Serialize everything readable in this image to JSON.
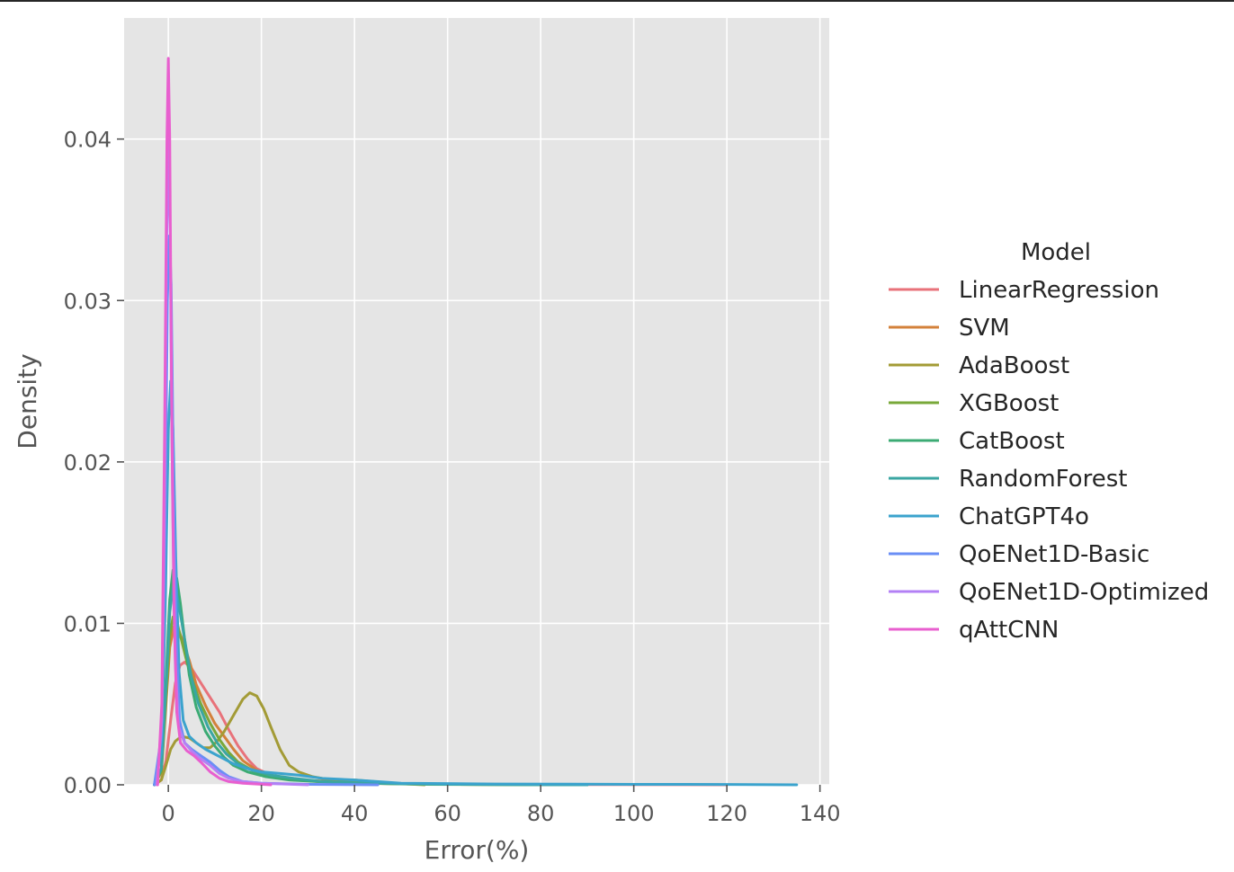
{
  "chart_data": {
    "type": "line",
    "title": "",
    "xlabel": "Error(%)",
    "ylabel": "Density",
    "xlim": [
      -9.5,
      142
    ],
    "ylim": [
      0,
      0.0475
    ],
    "x_ticks": [
      0,
      20,
      40,
      60,
      80,
      100,
      120,
      140
    ],
    "y_ticks": [
      0.0,
      0.01,
      0.02,
      0.03,
      0.04
    ],
    "y_tick_labels": [
      "0.00",
      "0.01",
      "0.02",
      "0.03",
      "0.04"
    ],
    "grid": true,
    "background": "#e5e5e5",
    "legend": {
      "title": "Model",
      "placement": "right-outside"
    },
    "series": [
      {
        "name": "LinearRegression",
        "color": "#e8727a",
        "points": [
          [
            -3,
            0
          ],
          [
            -1.5,
            0.0003
          ],
          [
            -0.5,
            0.0015
          ],
          [
            0.5,
            0.004
          ],
          [
            1.5,
            0.0063
          ],
          [
            2.5,
            0.0074
          ],
          [
            3.5,
            0.0076
          ],
          [
            5,
            0.0072
          ],
          [
            7,
            0.0063
          ],
          [
            9,
            0.0054
          ],
          [
            11,
            0.0045
          ],
          [
            13,
            0.0034
          ],
          [
            15,
            0.0024
          ],
          [
            17,
            0.0016
          ],
          [
            19,
            0.001
          ],
          [
            22,
            0.0006
          ],
          [
            26,
            0.0004
          ],
          [
            32,
            0.0002
          ],
          [
            40,
            0.0001
          ],
          [
            55,
            5e-05
          ],
          [
            80,
            2e-05
          ],
          [
            120,
            0
          ]
        ]
      },
      {
        "name": "SVM",
        "color": "#d3813b",
        "points": [
          [
            -3,
            0
          ],
          [
            -1.5,
            0.0008
          ],
          [
            -0.5,
            0.005
          ],
          [
            0.3,
            0.0085
          ],
          [
            1.2,
            0.0098
          ],
          [
            2,
            0.0097
          ],
          [
            3,
            0.009
          ],
          [
            4.5,
            0.0077
          ],
          [
            6,
            0.0062
          ],
          [
            8,
            0.0049
          ],
          [
            10,
            0.0038
          ],
          [
            12,
            0.003
          ],
          [
            14,
            0.0022
          ],
          [
            16,
            0.0015
          ],
          [
            19,
            0.0009
          ],
          [
            23,
            0.0005
          ],
          [
            28,
            0.0003
          ],
          [
            35,
            0.0002
          ],
          [
            45,
            0.0001
          ],
          [
            60,
            3e-05
          ],
          [
            90,
            0
          ]
        ]
      },
      {
        "name": "AdaBoost",
        "color": "#a39b36",
        "points": [
          [
            -3,
            0
          ],
          [
            -1.5,
            0.0003
          ],
          [
            -0.5,
            0.0012
          ],
          [
            0.5,
            0.0022
          ],
          [
            1.5,
            0.0027
          ],
          [
            2.8,
            0.003
          ],
          [
            4.5,
            0.0029
          ],
          [
            6,
            0.0026
          ],
          [
            7.5,
            0.0023
          ],
          [
            9,
            0.0023
          ],
          [
            10.5,
            0.0027
          ],
          [
            12,
            0.0033
          ],
          [
            14,
            0.0043
          ],
          [
            16,
            0.0053
          ],
          [
            17.5,
            0.0057
          ],
          [
            19,
            0.0055
          ],
          [
            20.5,
            0.0047
          ],
          [
            22,
            0.0036
          ],
          [
            24,
            0.0022
          ],
          [
            26,
            0.0012
          ],
          [
            28,
            0.0008
          ],
          [
            31,
            0.0005
          ],
          [
            35,
            0.0003
          ],
          [
            40,
            0.0003
          ],
          [
            44,
            0.0002
          ],
          [
            48,
            0.0001
          ],
          [
            55,
            0
          ]
        ]
      },
      {
        "name": "XGBoost",
        "color": "#79a83a",
        "points": [
          [
            -3,
            0
          ],
          [
            -1.5,
            0.0008
          ],
          [
            -0.5,
            0.0055
          ],
          [
            0.3,
            0.0092
          ],
          [
            1,
            0.0104
          ],
          [
            1.8,
            0.0101
          ],
          [
            2.8,
            0.009
          ],
          [
            4,
            0.0076
          ],
          [
            5.5,
            0.0062
          ],
          [
            7,
            0.005
          ],
          [
            9,
            0.0038
          ],
          [
            11,
            0.0028
          ],
          [
            13,
            0.002
          ],
          [
            15,
            0.0014
          ],
          [
            18,
            0.0009
          ],
          [
            22,
            0.0005
          ],
          [
            27,
            0.0003
          ],
          [
            33,
            0.0002
          ],
          [
            42,
            0.0001
          ],
          [
            55,
            3e-05
          ],
          [
            80,
            0
          ]
        ]
      },
      {
        "name": "CatBoost",
        "color": "#3cab74",
        "points": [
          [
            -3,
            0
          ],
          [
            -1.5,
            0.001
          ],
          [
            -0.5,
            0.0065
          ],
          [
            0.3,
            0.0115
          ],
          [
            1,
            0.0133
          ],
          [
            1.8,
            0.0128
          ],
          [
            2.6,
            0.0112
          ],
          [
            3.5,
            0.009
          ],
          [
            4.5,
            0.0068
          ],
          [
            6,
            0.0048
          ],
          [
            8,
            0.0033
          ],
          [
            10,
            0.0024
          ],
          [
            12,
            0.0017
          ],
          [
            14,
            0.0012
          ],
          [
            17,
            0.0008
          ],
          [
            21,
            0.0005
          ],
          [
            26,
            0.0003
          ],
          [
            32,
            0.0002
          ],
          [
            42,
            0.0001
          ],
          [
            60,
            3e-05
          ],
          [
            90,
            0
          ]
        ]
      },
      {
        "name": "RandomForest",
        "color": "#3aa6a2",
        "points": [
          [
            -3,
            0
          ],
          [
            -1.5,
            0.001
          ],
          [
            -0.5,
            0.006
          ],
          [
            0.3,
            0.0107
          ],
          [
            1,
            0.0122
          ],
          [
            1.8,
            0.0118
          ],
          [
            2.7,
            0.0104
          ],
          [
            3.8,
            0.0085
          ],
          [
            5,
            0.0066
          ],
          [
            6.5,
            0.005
          ],
          [
            8.5,
            0.0036
          ],
          [
            10.5,
            0.0026
          ],
          [
            12.5,
            0.0019
          ],
          [
            15,
            0.0013
          ],
          [
            18,
            0.0009
          ],
          [
            22,
            0.0006
          ],
          [
            27,
            0.0004
          ],
          [
            33,
            0.0002
          ],
          [
            42,
            0.0001
          ],
          [
            60,
            3e-05
          ],
          [
            90,
            0
          ]
        ]
      },
      {
        "name": "ChatGPT4o",
        "color": "#3ba3cd",
        "points": [
          [
            -3,
            0
          ],
          [
            -1.5,
            0.002
          ],
          [
            -0.6,
            0.012
          ],
          [
            0,
            0.022
          ],
          [
            0.5,
            0.025
          ],
          [
            1,
            0.022
          ],
          [
            1.6,
            0.014
          ],
          [
            2.3,
            0.007
          ],
          [
            3.2,
            0.004
          ],
          [
            4.5,
            0.003
          ],
          [
            6,
            0.0026
          ],
          [
            8,
            0.0022
          ],
          [
            10,
            0.0019
          ],
          [
            12,
            0.0016
          ],
          [
            14,
            0.0013
          ],
          [
            17,
            0.001
          ],
          [
            20,
            0.0008
          ],
          [
            24,
            0.0007
          ],
          [
            28,
            0.0006
          ],
          [
            33,
            0.0004
          ],
          [
            40,
            0.0003
          ],
          [
            50,
            0.0001
          ],
          [
            70,
            5e-05
          ],
          [
            100,
            3e-05
          ],
          [
            120,
            2e-05
          ],
          [
            135,
            0
          ]
        ]
      },
      {
        "name": "QoENet1D-Basic",
        "color": "#6a8ef5",
        "points": [
          [
            -3,
            0
          ],
          [
            -1.5,
            0.003
          ],
          [
            -0.7,
            0.016
          ],
          [
            -0.2,
            0.03
          ],
          [
            0.2,
            0.034
          ],
          [
            0.6,
            0.031
          ],
          [
            1.1,
            0.019
          ],
          [
            1.7,
            0.009
          ],
          [
            2.4,
            0.004
          ],
          [
            3.5,
            0.0026
          ],
          [
            5,
            0.0022
          ],
          [
            7,
            0.0018
          ],
          [
            9,
            0.0014
          ],
          [
            11,
            0.0009
          ],
          [
            13,
            0.0005
          ],
          [
            16,
            0.0002
          ],
          [
            20,
            0.0001
          ],
          [
            30,
            3e-05
          ],
          [
            45,
            0
          ]
        ]
      },
      {
        "name": "QoENet1D-Optimized",
        "color": "#b380f5",
        "points": [
          [
            -2.5,
            0
          ],
          [
            -1.4,
            0.004
          ],
          [
            -0.8,
            0.018
          ],
          [
            -0.4,
            0.033
          ],
          [
            0,
            0.04
          ],
          [
            0.4,
            0.034
          ],
          [
            0.9,
            0.018
          ],
          [
            1.5,
            0.0075
          ],
          [
            2.2,
            0.0036
          ],
          [
            3.5,
            0.0026
          ],
          [
            5,
            0.0021
          ],
          [
            7,
            0.0016
          ],
          [
            9,
            0.0012
          ],
          [
            11,
            0.0007
          ],
          [
            13,
            0.0004
          ],
          [
            16,
            0.0002
          ],
          [
            20,
            0.0001
          ],
          [
            30,
            0
          ]
        ]
      },
      {
        "name": "qAttCNN",
        "color": "#e85fcf",
        "points": [
          [
            -2.3,
            0
          ],
          [
            -1.4,
            0.005
          ],
          [
            -0.8,
            0.022
          ],
          [
            -0.3,
            0.04
          ],
          [
            0,
            0.045
          ],
          [
            0.3,
            0.04
          ],
          [
            0.7,
            0.024
          ],
          [
            1.2,
            0.011
          ],
          [
            1.8,
            0.0045
          ],
          [
            2.6,
            0.0026
          ],
          [
            4,
            0.0021
          ],
          [
            5.5,
            0.0018
          ],
          [
            7,
            0.0014
          ],
          [
            9,
            0.0008
          ],
          [
            11,
            0.0004
          ],
          [
            13,
            0.0002
          ],
          [
            16,
            0.0001
          ],
          [
            22,
            0
          ]
        ]
      }
    ]
  }
}
